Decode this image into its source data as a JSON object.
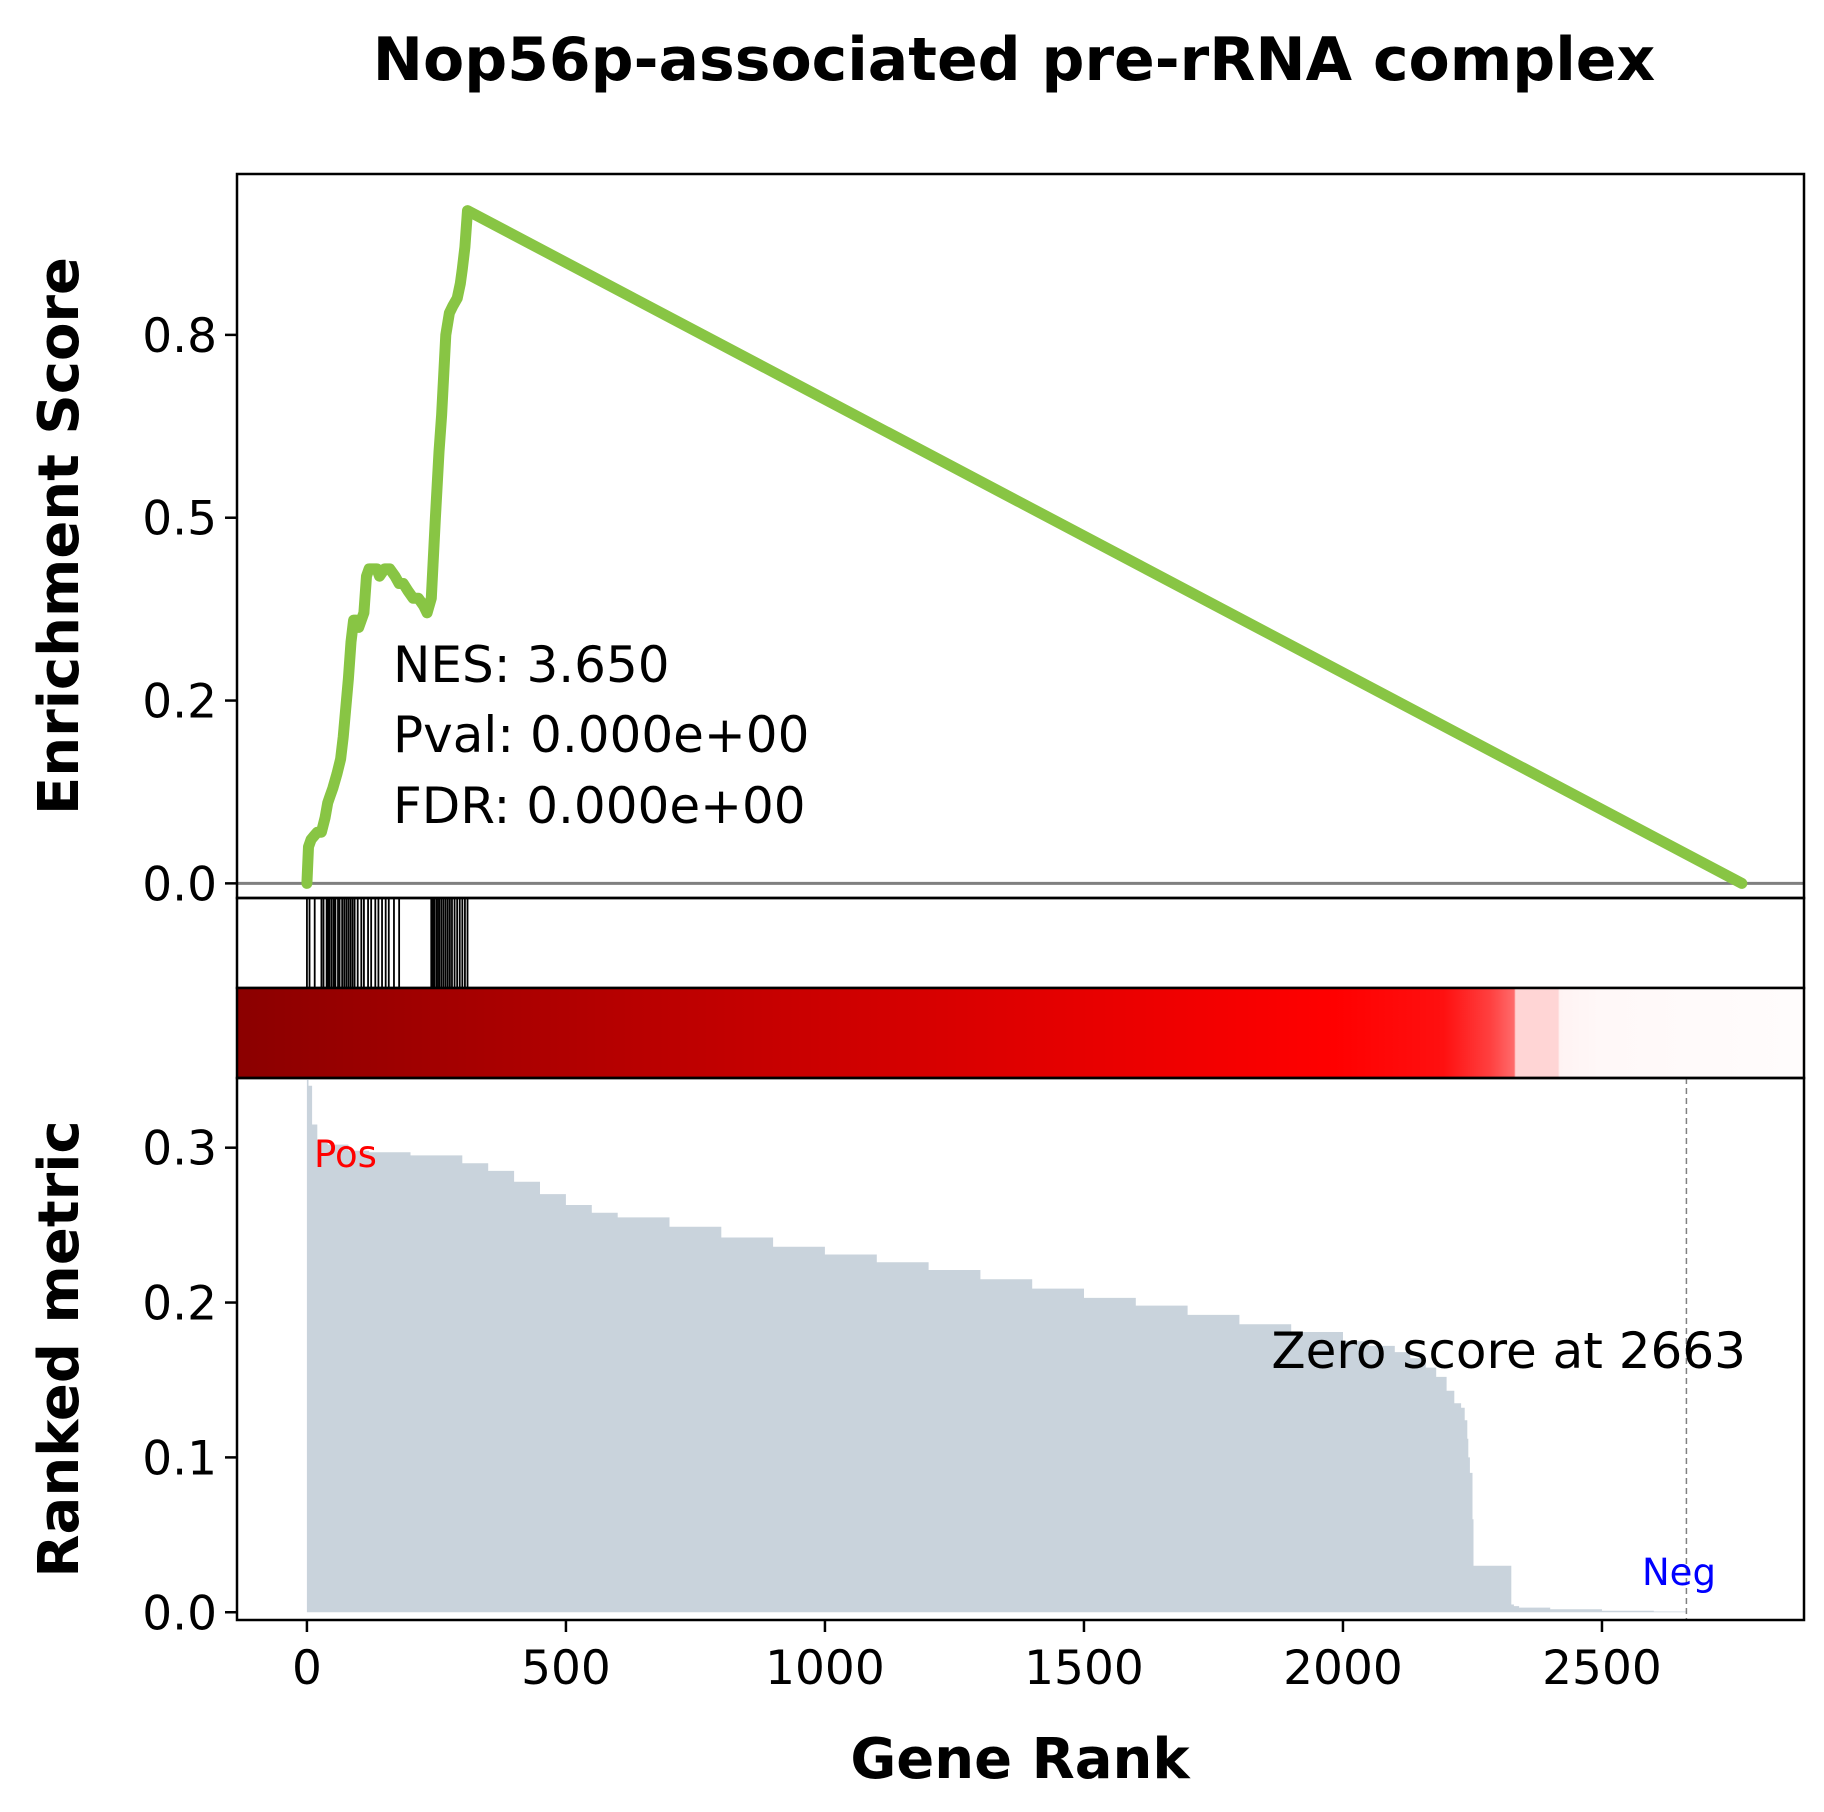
{
  "chart_data": {
    "type": "line",
    "title": "Nop56p-associated pre-rRNA complex",
    "xlabel": "Gene Rank",
    "xlim": [
      -135,
      2890
    ],
    "x_ticks": [
      "0",
      "500",
      "1000",
      "1500",
      "2000",
      "2500"
    ],
    "colors": {
      "es_line": "#88c544",
      "metric_fill": "#c9d3dc",
      "zero_line": "#808080",
      "pos_label": "#ff0000",
      "neg_label": "#0000ff"
    },
    "panels": [
      {
        "name": "enrichment",
        "ylabel": "Enrichment Score",
        "ylim": [
          -0.02,
          0.97
        ],
        "y_ticks": [
          "0.0",
          "0.2",
          "0.5",
          "0.8"
        ],
        "y_tick_values": [
          0.0,
          0.25,
          0.5,
          0.75
        ],
        "annotations": [
          "NES: 3.650",
          "Pval: 0.000e+00",
          "FDR: 0.000e+00"
        ],
        "series": [
          {
            "x": [
              0,
              3,
              8,
              14,
              20,
              28,
              35,
              40,
              45,
              50,
              58,
              65,
              70,
              75,
              80,
              85,
              90,
              95,
              100,
              110,
              115,
              120,
              128,
              135,
              140,
              150,
              160,
              170,
              178,
              186,
              195,
              205,
              215,
              225,
              232,
              240,
              248,
              255,
              260,
              268,
              275,
              282,
              290,
              296,
              300,
              305,
              310,
              2770
            ],
            "y": [
              0.0,
              0.05,
              0.06,
              0.065,
              0.07,
              0.07,
              0.09,
              0.11,
              0.12,
              0.13,
              0.15,
              0.17,
              0.2,
              0.24,
              0.28,
              0.33,
              0.36,
              0.36,
              0.35,
              0.37,
              0.42,
              0.43,
              0.43,
              0.43,
              0.42,
              0.43,
              0.43,
              0.42,
              0.41,
              0.41,
              0.4,
              0.39,
              0.39,
              0.38,
              0.37,
              0.39,
              0.5,
              0.59,
              0.64,
              0.75,
              0.78,
              0.79,
              0.8,
              0.82,
              0.84,
              0.87,
              0.92,
              0.0
            ]
          }
        ]
      },
      {
        "name": "hits",
        "hit_ranks": [
          0,
          5,
          15,
          28,
          32,
          38,
          41,
          44,
          48,
          52,
          55,
          60,
          63,
          68,
          72,
          76,
          80,
          84,
          88,
          92,
          98,
          105,
          110,
          118,
          124,
          132,
          138,
          145,
          152,
          158,
          168,
          178,
          240,
          243,
          246,
          250,
          253,
          256,
          260,
          264,
          268,
          272,
          276,
          280,
          285,
          290,
          295,
          300,
          305,
          310
        ]
      },
      {
        "name": "ranked_metric",
        "ylabel": "Ranked metric",
        "ylim": [
          -0.005,
          0.345
        ],
        "y_ticks": [
          "0.0",
          "0.1",
          "0.2",
          "0.3"
        ],
        "y_tick_values": [
          0.0,
          0.1,
          0.2,
          0.3
        ],
        "pos_label": "Pos",
        "neg_label": "Neg",
        "zero_score_text": "Zero score at 2663",
        "zero_score_rank": 2663,
        "series": [
          {
            "x": [
              0,
              3,
              10,
              20,
              40,
              80,
              120,
              200,
              300,
              350,
              400,
              450,
              500,
              550,
              600,
              700,
              800,
              900,
              1000,
              1100,
              1200,
              1300,
              1400,
              1500,
              1600,
              1700,
              1800,
              1900,
              2000,
              2050,
              2100,
              2130,
              2160,
              2180,
              2200,
              2215,
              2228,
              2235,
              2240,
              2242,
              2245,
              2250,
              2252,
              2320,
              2325,
              2330,
              2340,
              2400,
              2500,
              2600,
              2663,
              2770
            ],
            "y": [
              0.345,
              0.34,
              0.315,
              0.305,
              0.302,
              0.298,
              0.297,
              0.295,
              0.29,
              0.285,
              0.278,
              0.27,
              0.263,
              0.258,
              0.255,
              0.249,
              0.242,
              0.236,
              0.231,
              0.226,
              0.221,
              0.215,
              0.209,
              0.203,
              0.198,
              0.192,
              0.186,
              0.181,
              0.175,
              0.172,
              0.168,
              0.164,
              0.158,
              0.152,
              0.143,
              0.135,
              0.132,
              0.124,
              0.112,
              0.1,
              0.09,
              0.06,
              0.03,
              0.03,
              0.005,
              0.004,
              0.003,
              0.002,
              0.001,
              0.0005,
              0.0,
              0.0
            ]
          }
        ]
      }
    ]
  }
}
